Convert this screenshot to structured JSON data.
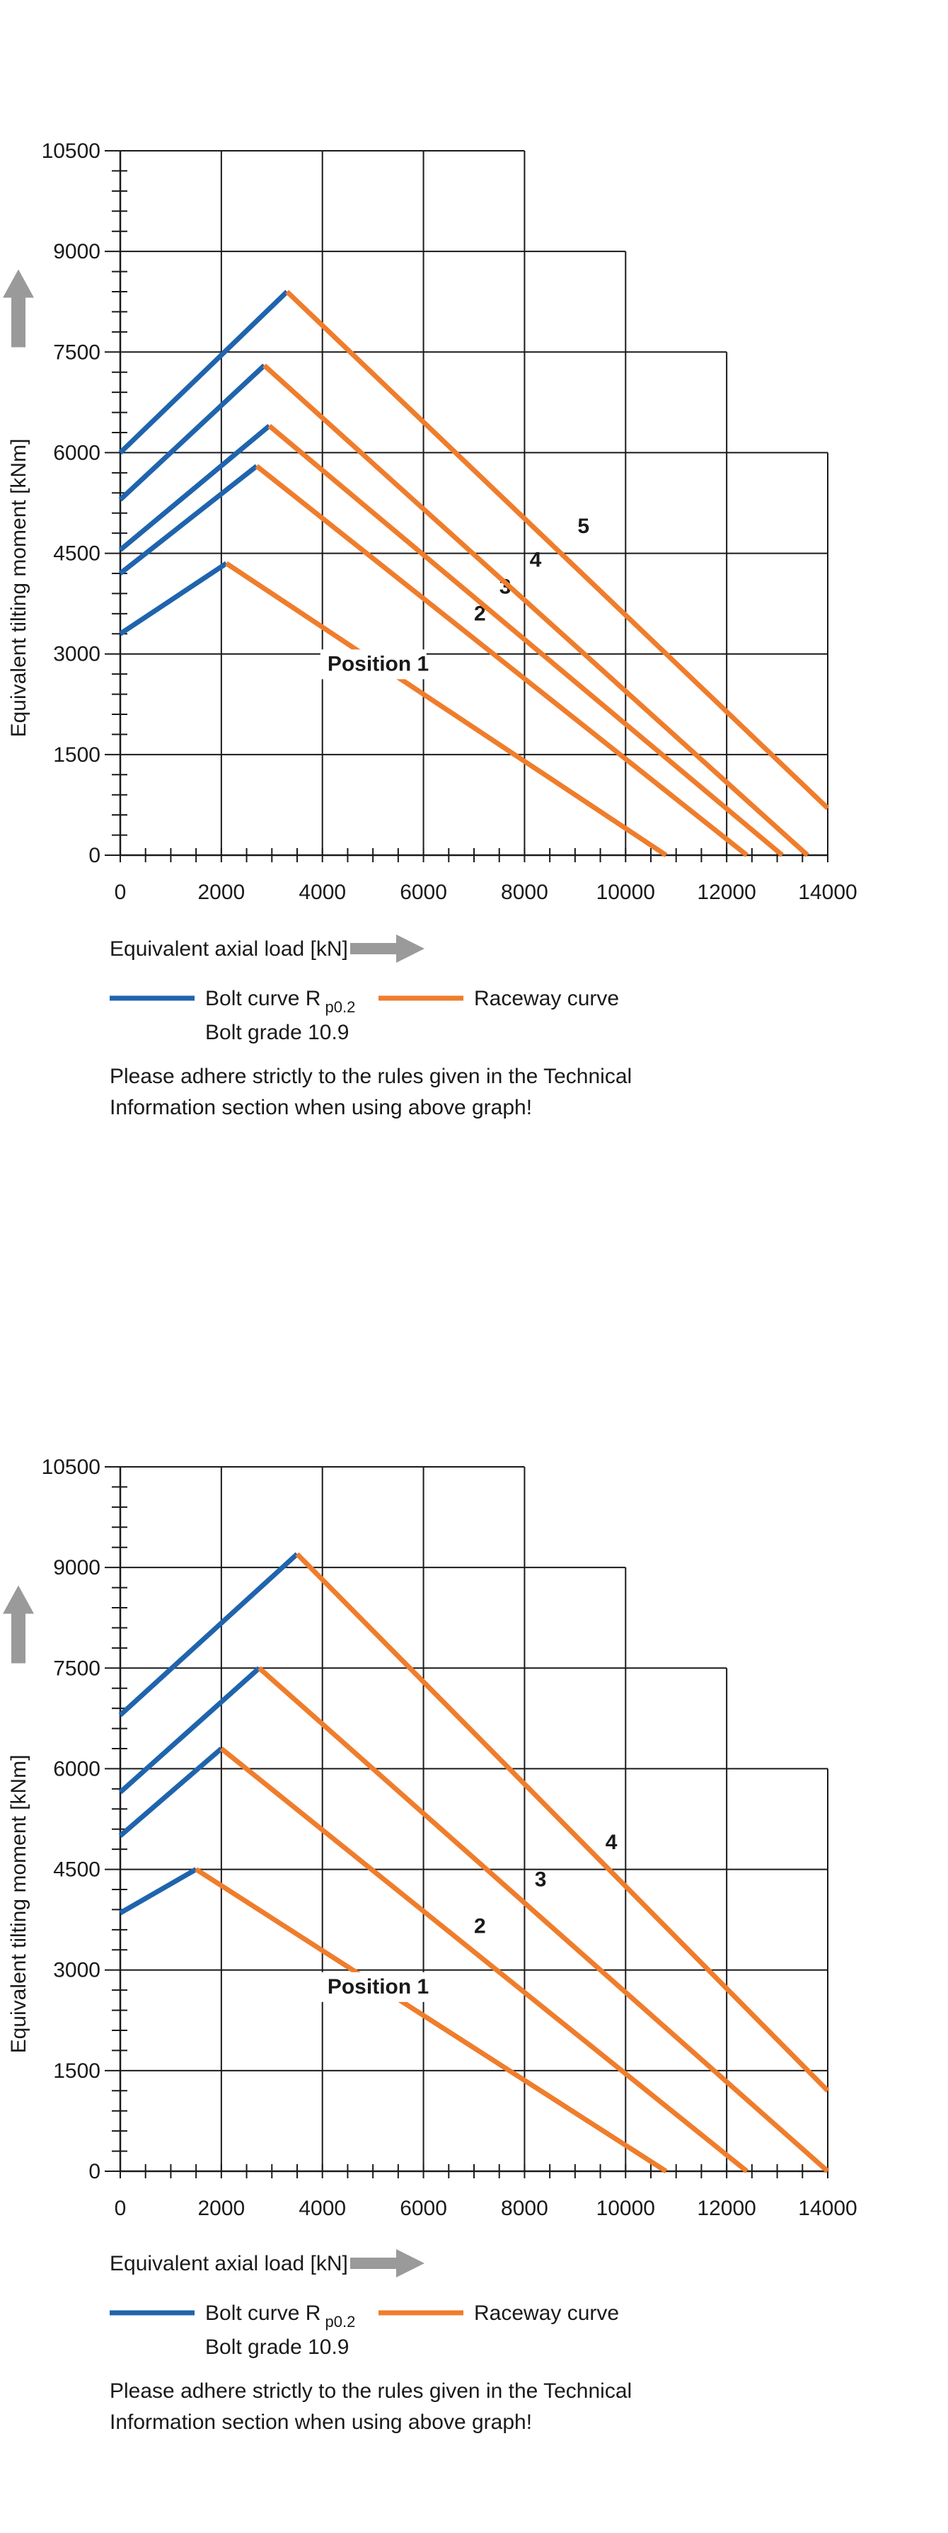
{
  "chart_data": [
    {
      "type": "line",
      "xlabel": "Equivalent axial load [kN]",
      "ylabel": "Equivalent tilting moment [kNm]",
      "xlim": [
        0,
        14000
      ],
      "ylim": [
        0,
        10500
      ],
      "x_ticks": [
        "0",
        "2000",
        "4000",
        "6000",
        "8000",
        "10000",
        "12000",
        "14000"
      ],
      "y_ticks": [
        "0",
        "1500",
        "3000",
        "4500",
        "6000",
        "7500",
        "9000",
        "10500"
      ],
      "grid": true,
      "grid_top": [
        10500,
        10500,
        10500,
        10500,
        10500,
        9000,
        7500,
        6000
      ],
      "legend": [
        {
          "key": "bolt",
          "label": "Bolt curve  R",
          "sub": "p0.2",
          "label2": "Bolt grade 10.9",
          "color": "#1f64ad"
        },
        {
          "key": "raceway",
          "label": "Raceway curve",
          "color": "#ef7d2c"
        }
      ],
      "note": [
        "Please adhere strictly to the rules given in the Technical",
        "Information section when using above graph!"
      ],
      "series": [
        {
          "label": "Position  1",
          "label_at": [
            4100,
            2750
          ],
          "bolt": [
            [
              0,
              3300
            ],
            [
              2100,
              4350
            ]
          ],
          "raceway": [
            [
              2100,
              4350
            ],
            [
              10800,
              0
            ]
          ]
        },
        {
          "label": "2",
          "label_at": [
            7000,
            3500
          ],
          "bolt": [
            [
              0,
              4200
            ],
            [
              2700,
              5800
            ]
          ],
          "raceway": [
            [
              2700,
              5800
            ],
            [
              12400,
              0
            ]
          ]
        },
        {
          "label": "3",
          "label_at": [
            7500,
            3900
          ],
          "bolt": [
            [
              0,
              4550
            ],
            [
              2950,
              6400
            ]
          ],
          "raceway": [
            [
              2950,
              6400
            ],
            [
              13100,
              0
            ]
          ]
        },
        {
          "label": "4",
          "label_at": [
            8100,
            4300
          ],
          "bolt": [
            [
              0,
              5300
            ],
            [
              2850,
              7300
            ]
          ],
          "raceway": [
            [
              2850,
              7300
            ],
            [
              13600,
              0
            ]
          ]
        },
        {
          "label": "5",
          "label_at": [
            9050,
            4800
          ],
          "bolt": [
            [
              0,
              6000
            ],
            [
              3300,
              8400
            ]
          ],
          "raceway": [
            [
              3300,
              8400
            ],
            [
              14000,
              700
            ]
          ]
        }
      ]
    },
    {
      "type": "line",
      "xlabel": "Equivalent axial load [kN]",
      "ylabel": "Equivalent tilting moment [kNm]",
      "xlim": [
        0,
        14000
      ],
      "ylim": [
        0,
        10500
      ],
      "x_ticks": [
        "0",
        "2000",
        "4000",
        "6000",
        "8000",
        "10000",
        "12000",
        "14000"
      ],
      "y_ticks": [
        "0",
        "1500",
        "3000",
        "4500",
        "6000",
        "7500",
        "9000",
        "10500"
      ],
      "grid": true,
      "grid_top": [
        10500,
        10500,
        10500,
        10500,
        10500,
        9000,
        7500,
        6000
      ],
      "legend": [
        {
          "key": "bolt",
          "label": "Bolt curve  R",
          "sub": "p0.2",
          "label2": "Bolt grade 10.9",
          "color": "#1f64ad"
        },
        {
          "key": "raceway",
          "label": "Raceway curve",
          "color": "#ef7d2c"
        }
      ],
      "note": [
        "Please adhere strictly to the rules given in the Technical",
        "Information section when using above graph!"
      ],
      "series": [
        {
          "label": "Position  1",
          "label_at": [
            4100,
            2650
          ],
          "bolt": [
            [
              0,
              3850
            ],
            [
              1500,
              4500
            ]
          ],
          "raceway": [
            [
              1500,
              4500
            ],
            [
              10800,
              0
            ]
          ]
        },
        {
          "label": "2",
          "label_at": [
            7000,
            3550
          ],
          "bolt": [
            [
              0,
              5000
            ],
            [
              2000,
              6300
            ]
          ],
          "raceway": [
            [
              2000,
              6300
            ],
            [
              12400,
              0
            ]
          ]
        },
        {
          "label": "3",
          "label_at": [
            8200,
            4250
          ],
          "bolt": [
            [
              0,
              5650
            ],
            [
              2750,
              7500
            ]
          ],
          "raceway": [
            [
              2750,
              7500
            ],
            [
              14000,
              0
            ]
          ]
        },
        {
          "label": "4",
          "label_at": [
            9600,
            4800
          ],
          "bolt": [
            [
              0,
              6800
            ],
            [
              3500,
              9200
            ]
          ],
          "raceway": [
            [
              3500,
              9200
            ],
            [
              14000,
              1200
            ]
          ]
        }
      ]
    }
  ]
}
